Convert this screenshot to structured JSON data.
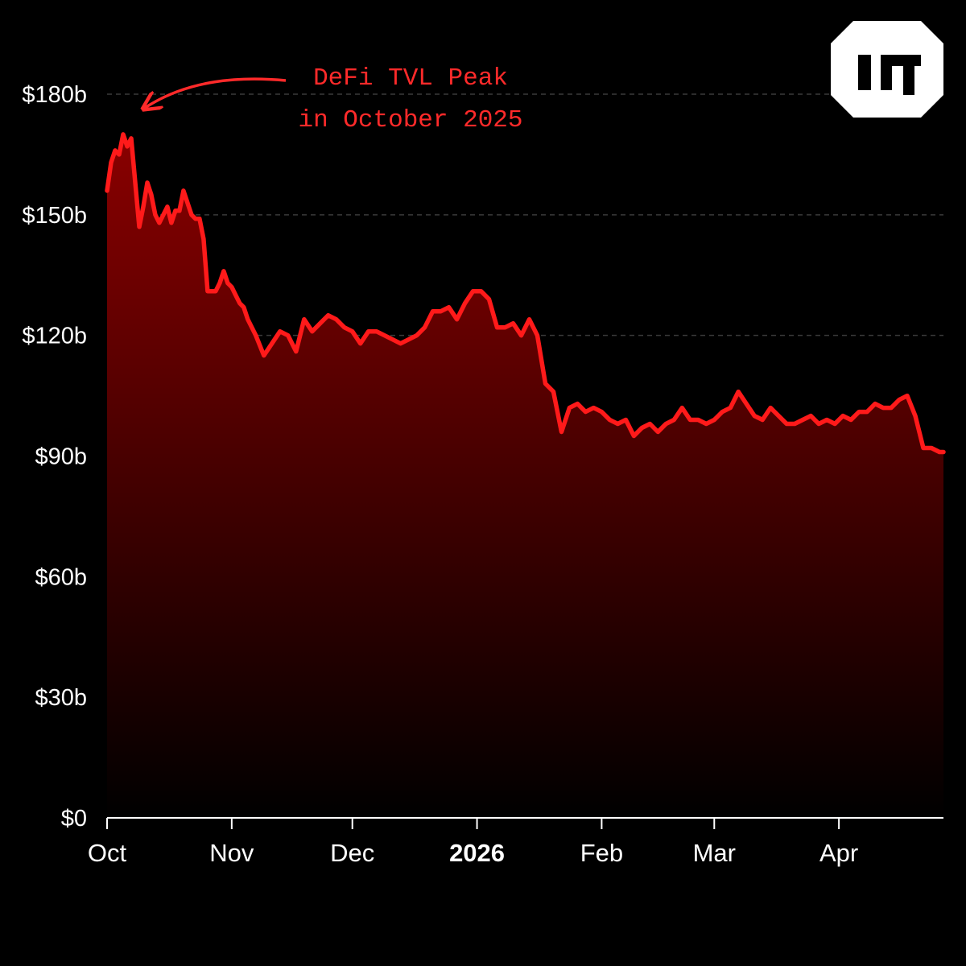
{
  "chart_data": {
    "type": "area",
    "y_unit": "USD billions",
    "ylim": [
      0,
      180
    ],
    "grid": true,
    "y_ticks": [
      {
        "value": 0,
        "label": "$0"
      },
      {
        "value": 30,
        "label": "$30b"
      },
      {
        "value": 60,
        "label": "$60b"
      },
      {
        "value": 90,
        "label": "$90b"
      },
      {
        "value": 120,
        "label": "$120b"
      },
      {
        "value": 150,
        "label": "$150b"
      },
      {
        "value": 180,
        "label": "$180b"
      }
    ],
    "x_ticks": [
      {
        "date": "2025-10-01",
        "label": "Oct",
        "bold": false
      },
      {
        "date": "2025-11-01",
        "label": "Nov",
        "bold": false
      },
      {
        "date": "2025-12-01",
        "label": "Dec",
        "bold": false
      },
      {
        "date": "2026-01-01",
        "label": "2026",
        "bold": true
      },
      {
        "date": "2026-02-01",
        "label": "Feb",
        "bold": false
      },
      {
        "date": "2026-03-01",
        "label": "Mar",
        "bold": false
      },
      {
        "date": "2026-04-01",
        "label": "Apr",
        "bold": false
      }
    ],
    "xlim": [
      "2025-10-01",
      "2026-04-27"
    ],
    "line_color": "#ff1a1a",
    "series": [
      {
        "x": [
          "2025-10-01",
          "2025-10-02",
          "2025-10-03",
          "2025-10-04",
          "2025-10-05",
          "2025-10-06",
          "2025-10-07",
          "2025-10-08",
          "2025-10-09",
          "2025-10-10",
          "2025-10-11",
          "2025-10-12",
          "2025-10-13",
          "2025-10-14",
          "2025-10-15",
          "2025-10-16",
          "2025-10-17",
          "2025-10-18",
          "2025-10-19",
          "2025-10-20",
          "2025-10-21",
          "2025-10-22",
          "2025-10-23",
          "2025-10-24",
          "2025-10-25",
          "2025-10-26",
          "2025-10-27",
          "2025-10-28",
          "2025-10-29",
          "2025-10-30",
          "2025-10-31",
          "2025-11-01",
          "2025-11-02",
          "2025-11-03",
          "2025-11-04",
          "2025-11-05",
          "2025-11-07",
          "2025-11-09",
          "2025-11-11",
          "2025-11-13",
          "2025-11-15",
          "2025-11-17",
          "2025-11-19",
          "2025-11-21",
          "2025-11-23",
          "2025-11-25",
          "2025-11-27",
          "2025-11-29",
          "2025-12-01",
          "2025-12-03",
          "2025-12-05",
          "2025-12-07",
          "2025-12-09",
          "2025-12-11",
          "2025-12-13",
          "2025-12-15",
          "2025-12-17",
          "2025-12-19",
          "2025-12-21",
          "2025-12-23",
          "2025-12-25",
          "2025-12-27",
          "2025-12-29",
          "2025-12-31",
          "2026-01-02",
          "2026-01-04",
          "2026-01-06",
          "2026-01-08",
          "2026-01-10",
          "2026-01-12",
          "2026-01-14",
          "2026-01-16",
          "2026-01-18",
          "2026-01-20",
          "2026-01-22",
          "2026-01-24",
          "2026-01-26",
          "2026-01-28",
          "2026-01-30",
          "2026-02-01",
          "2026-02-03",
          "2026-02-05",
          "2026-02-07",
          "2026-02-09",
          "2026-02-11",
          "2026-02-13",
          "2026-02-15",
          "2026-02-17",
          "2026-02-19",
          "2026-02-21",
          "2026-02-23",
          "2026-02-25",
          "2026-02-27",
          "2026-03-01",
          "2026-03-03",
          "2026-03-05",
          "2026-03-07",
          "2026-03-09",
          "2026-03-11",
          "2026-03-13",
          "2026-03-15",
          "2026-03-17",
          "2026-03-19",
          "2026-03-21",
          "2026-03-23",
          "2026-03-25",
          "2026-03-27",
          "2026-03-29",
          "2026-03-31",
          "2026-04-02",
          "2026-04-04",
          "2026-04-06",
          "2026-04-08",
          "2026-04-10",
          "2026-04-12",
          "2026-04-14",
          "2026-04-16",
          "2026-04-18",
          "2026-04-20",
          "2026-04-22",
          "2026-04-24",
          "2026-04-26",
          "2026-04-27"
        ],
        "y": [
          156,
          163,
          166,
          165,
          170,
          167,
          169,
          158,
          147,
          152,
          158,
          155,
          150,
          148,
          150,
          152,
          148,
          151,
          151,
          156,
          153,
          150,
          149,
          149,
          144,
          131,
          131,
          131,
          133,
          136,
          133,
          132,
          130,
          128,
          127,
          124,
          120,
          115,
          118,
          121,
          120,
          116,
          124,
          121,
          123,
          125,
          124,
          122,
          121,
          118,
          121,
          121,
          120,
          119,
          118,
          119,
          120,
          122,
          126,
          126,
          127,
          124,
          128,
          131,
          131,
          129,
          122,
          122,
          123,
          120,
          124,
          120,
          108,
          106,
          96,
          102,
          103,
          101,
          102,
          101,
          99,
          98,
          99,
          95,
          97,
          98,
          96,
          98,
          99,
          102,
          99,
          99,
          98,
          99,
          101,
          102,
          106,
          103,
          100,
          99,
          102,
          100,
          98,
          98,
          99,
          100,
          98,
          99,
          98,
          100,
          99,
          101,
          101,
          103,
          102,
          102,
          104,
          105,
          100,
          92,
          92,
          91,
          91
        ]
      }
    ],
    "annotation": {
      "lines": [
        "DeFi TVL Peak",
        "in October 2025"
      ],
      "target_date": "2025-10-05",
      "target_value": 170,
      "color": "#ff2a2a"
    }
  },
  "logo": {
    "name": "brand-logo-icon",
    "color": "#ffffff"
  }
}
